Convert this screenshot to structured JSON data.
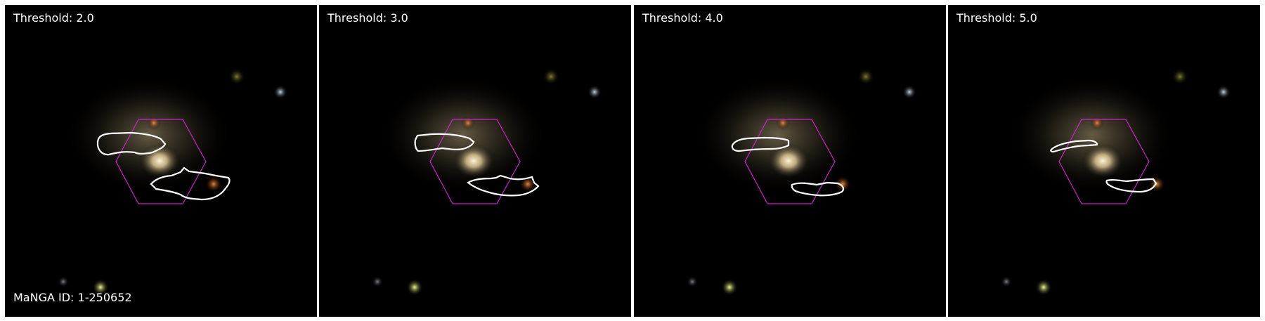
{
  "panels": [
    {
      "threshold_label": "Threshold: 2.0"
    },
    {
      "threshold_label": "Threshold: 3.0"
    },
    {
      "threshold_label": "Threshold: 4.0"
    },
    {
      "threshold_label": "Threshold: 5.0"
    }
  ],
  "manga_id_label": "MaNGA ID: 1-250652",
  "colors": {
    "background": "#000000",
    "hexagon": "#cc22cc",
    "contour": "#ffffff"
  }
}
